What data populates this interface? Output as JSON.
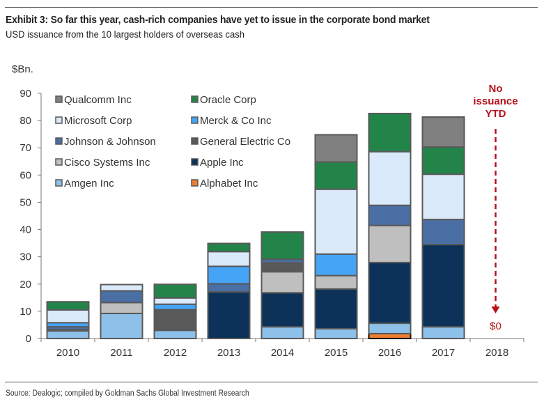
{
  "header": {
    "title": "Exhibit 3: So far this year, cash-rich companies have yet to issue in the corporate bond market",
    "subtitle": "USD issuance from the 10 largest holders of overseas cash"
  },
  "footer": {
    "source": "Source: Dealogic; compiled by Goldman Sachs Global Investment Research"
  },
  "chart_data": {
    "type": "bar",
    "stacked": true,
    "title": "Exhibit 3: So far this year, cash-rich companies have yet to issue in the corporate bond market",
    "subtitle": "USD issuance from the 10 largest holders of overseas cash",
    "xlabel": "",
    "ylabel": "$Bn.",
    "ylim": [
      0,
      90
    ],
    "yticks": [
      0,
      10,
      20,
      30,
      40,
      50,
      60,
      70,
      80,
      90
    ],
    "grid": false,
    "legend_position": "top-left",
    "categories": [
      "2010",
      "2011",
      "2012",
      "2013",
      "2014",
      "2015",
      "2016",
      "2017",
      "2018"
    ],
    "series": [
      {
        "name": "Alphabet Inc",
        "color": "#ed7d31",
        "values": [
          0,
          0,
          0,
          0,
          0,
          0,
          1.8,
          0,
          0
        ]
      },
      {
        "name": "Amgen Inc",
        "color": "#8ec1ea",
        "values": [
          2.8,
          9.2,
          3.0,
          0,
          4.3,
          3.6,
          3.8,
          4.3,
          0
        ]
      },
      {
        "name": "Apple Inc",
        "color": "#0c3259",
        "values": [
          0,
          0,
          0,
          17.1,
          12.5,
          14.6,
          22.3,
          30.2,
          0
        ]
      },
      {
        "name": "Cisco Systems Inc",
        "color": "#bfbfbf",
        "values": [
          0.5,
          4.0,
          0,
          0,
          7.7,
          4.9,
          13.6,
          0,
          0
        ]
      },
      {
        "name": "General Electric Co",
        "color": "#595959",
        "values": [
          0,
          0,
          7.6,
          0,
          3.3,
          0,
          0,
          0,
          0
        ]
      },
      {
        "name": "Johnson & Johnson",
        "color": "#4a6fa5",
        "values": [
          1.0,
          4.3,
          0,
          3.0,
          1.3,
          0,
          7.4,
          9.2,
          0
        ]
      },
      {
        "name": "Merck & Co Inc",
        "color": "#45a4f5",
        "values": [
          1.5,
          0,
          2.0,
          6.4,
          0,
          7.9,
          0,
          0,
          0
        ]
      },
      {
        "name": "Microsoft Corp",
        "color": "#dbeafa",
        "values": [
          4.7,
          2.3,
          2.3,
          5.4,
          0,
          23.8,
          19.7,
          16.6,
          0
        ]
      },
      {
        "name": "Oracle Corp",
        "color": "#23844a",
        "values": [
          3.0,
          0,
          5.0,
          3.0,
          10.0,
          10.0,
          14.0,
          10.0,
          0
        ]
      },
      {
        "name": "Qualcomm Inc",
        "color": "#808080",
        "values": [
          0,
          0,
          0,
          0,
          0,
          10.0,
          0,
          11.0,
          0
        ]
      }
    ],
    "legend_order": [
      "Qualcomm Inc",
      "Oracle Corp",
      "Microsoft Corp",
      "Merck & Co Inc",
      "Johnson & Johnson",
      "General Electric Co",
      "Cisco Systems Inc",
      "Apple Inc",
      "Amgen Inc",
      "Alphabet Inc"
    ],
    "annotations": [
      {
        "category": "2018",
        "text_lines": [
          "No",
          "issuance",
          "YTD"
        ],
        "color": "#b5121b",
        "arrow": "dashed-down"
      },
      {
        "category": "2018",
        "text": "$0",
        "color": "#b5121b"
      }
    ]
  }
}
